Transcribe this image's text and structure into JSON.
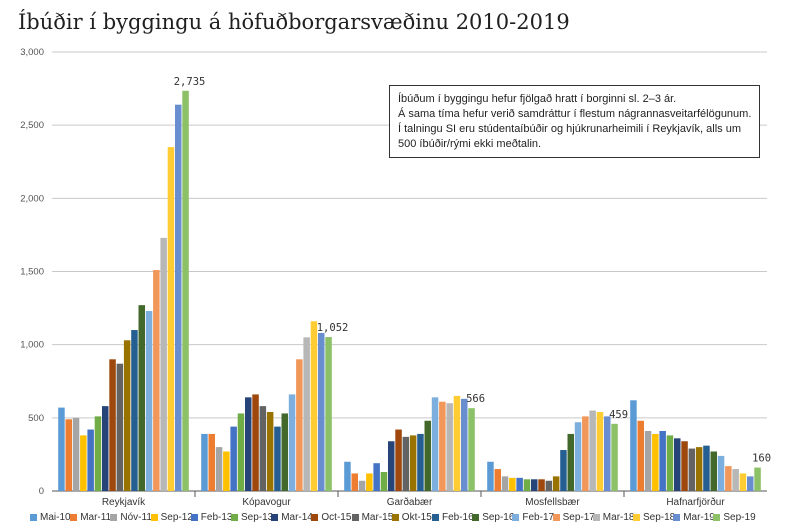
{
  "title": "Íbúðir í byggingu á höfuðborgarsvæðinu 2010-2019",
  "note": [
    "Íbúðum í byggingu hefur fjölgað hratt í borginni sl. 2–3 ár.",
    "Á sama tíma hefur verið samdráttur í flestum nágrannasveitarfélögunum.",
    "Í talningu SI eru stúdentaíbúðir og hjúkrunarheimili í Reykjavík, alls um",
    "500 íbúðir/rými ekki meðtalin."
  ],
  "chart_data": {
    "type": "bar",
    "categories": [
      "Reykjavík",
      "Kópavogur",
      "Garðabær",
      "Mosfellsbær",
      "Hafnarfjörður"
    ],
    "ylim": [
      0,
      3000
    ],
    "yticks": [
      "0",
      "500",
      "1,000",
      "1,500",
      "2,000",
      "2,500",
      "3,000"
    ],
    "grid": true,
    "legend_position": "bottom",
    "series": [
      {
        "name": "Mai-10",
        "color": "#5b9bd5",
        "values": [
          570,
          390,
          200,
          200,
          620
        ]
      },
      {
        "name": "Mar-11",
        "color": "#ed7d31",
        "values": [
          490,
          390,
          120,
          150,
          480
        ]
      },
      {
        "name": "Nóv-11",
        "color": "#a5a5a5",
        "values": [
          500,
          300,
          70,
          100,
          410
        ]
      },
      {
        "name": "Sep-12",
        "color": "#ffc000",
        "values": [
          380,
          270,
          120,
          90,
          390
        ]
      },
      {
        "name": "Feb-13",
        "color": "#4472c4",
        "values": [
          420,
          440,
          190,
          90,
          410
        ]
      },
      {
        "name": "Sep-13",
        "color": "#70ad47",
        "values": [
          510,
          530,
          130,
          80,
          380
        ]
      },
      {
        "name": "Mar-14",
        "color": "#264478",
        "values": [
          580,
          640,
          340,
          80,
          360
        ]
      },
      {
        "name": "Oct-15",
        "color": "#9e480e",
        "values": [
          900,
          660,
          420,
          80,
          340
        ]
      },
      {
        "name": "Mar-15",
        "color": "#636363",
        "values": [
          870,
          580,
          370,
          70,
          290
        ]
      },
      {
        "name": "Okt-15",
        "color": "#997300",
        "values": [
          1030,
          540,
          380,
          100,
          300
        ]
      },
      {
        "name": "Feb-16",
        "color": "#255e91",
        "values": [
          1100,
          440,
          390,
          280,
          310
        ]
      },
      {
        "name": "Sep-16",
        "color": "#43682b",
        "values": [
          1270,
          530,
          480,
          390,
          270
        ]
      },
      {
        "name": "Feb-17",
        "color": "#7cafdd",
        "values": [
          1230,
          660,
          640,
          470,
          240
        ]
      },
      {
        "name": "Sep-17",
        "color": "#f1975a",
        "values": [
          1510,
          900,
          610,
          510,
          170
        ]
      },
      {
        "name": "Mar-18",
        "color": "#b7b7b7",
        "values": [
          1730,
          1050,
          600,
          550,
          150
        ]
      },
      {
        "name": "Sep-18",
        "color": "#ffcd33",
        "values": [
          2350,
          1160,
          650,
          540,
          120
        ]
      },
      {
        "name": "Mar-19",
        "color": "#698ed0",
        "values": [
          2640,
          1080,
          630,
          510,
          100
        ]
      },
      {
        "name": "Sep-19",
        "color": "#8cc168",
        "values": [
          2735,
          1052,
          566,
          459,
          160
        ]
      }
    ],
    "data_labels": [
      "2,735",
      "1,052",
      "566",
      "459",
      "160"
    ]
  }
}
